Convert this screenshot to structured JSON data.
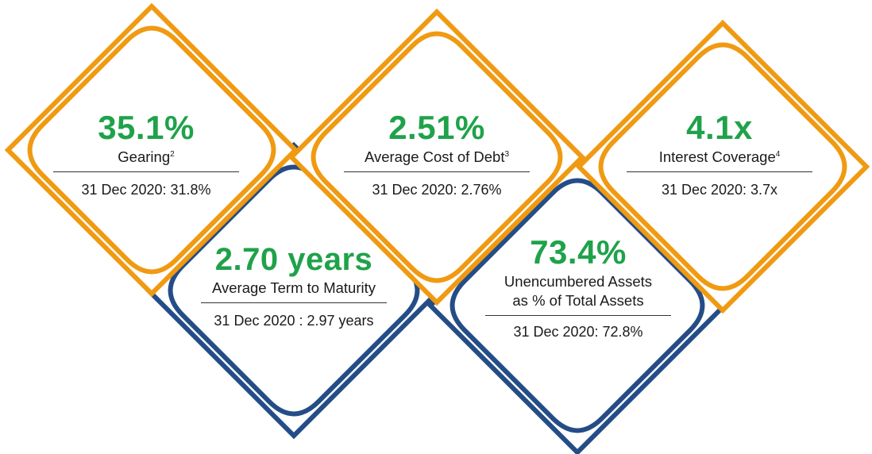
{
  "colors": {
    "orange": "#f09a12",
    "navy": "#244d87",
    "green": "#1fa24a"
  },
  "cards": [
    {
      "value": "35.1%",
      "label": "Gearing",
      "sup": "2",
      "comparison": "31 Dec 2020: 31.8%"
    },
    {
      "value": "2.51%",
      "label": "Average Cost of Debt",
      "sup": "3",
      "comparison": "31 Dec 2020: 2.76%"
    },
    {
      "value": "4.1x",
      "label": "Interest Coverage",
      "sup": "4",
      "comparison": "31 Dec 2020: 3.7x"
    },
    {
      "value": "2.70 years",
      "label": "Average Term to Maturity",
      "sup": "",
      "comparison": "31 Dec 2020 : 2.97 years"
    },
    {
      "value": "73.4%",
      "label_line1": "Unencumbered Assets",
      "label_line2": "as % of Total Assets",
      "comparison": "31 Dec 2020: 72.8%"
    }
  ]
}
